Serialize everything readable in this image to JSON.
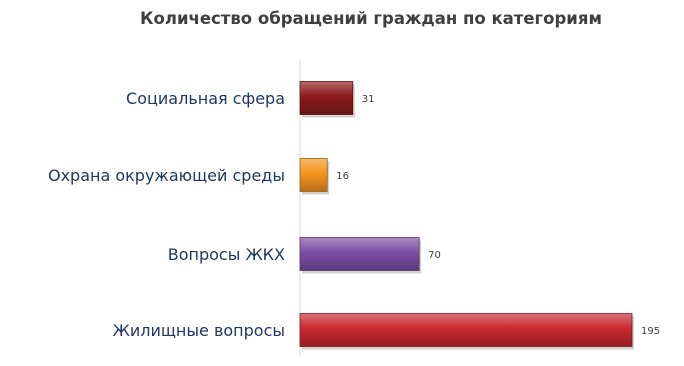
{
  "chart_data": {
    "type": "bar",
    "orientation": "horizontal",
    "title": "Количество обращений граждан по категориям",
    "categories": [
      "Социальная сфера",
      "Охрана окружающей среды",
      "Вопросы ЖКХ",
      "Жилищные вопросы"
    ],
    "values": [
      31,
      16,
      70,
      195
    ],
    "data_labels": [
      "31",
      "16",
      "70",
      "195"
    ],
    "bar_colors": [
      "#8b1a1a",
      "#f29420",
      "#7b4ea3",
      "#c8282d"
    ],
    "xlim": [
      0,
      195
    ],
    "grid": false,
    "legend": "none"
  }
}
